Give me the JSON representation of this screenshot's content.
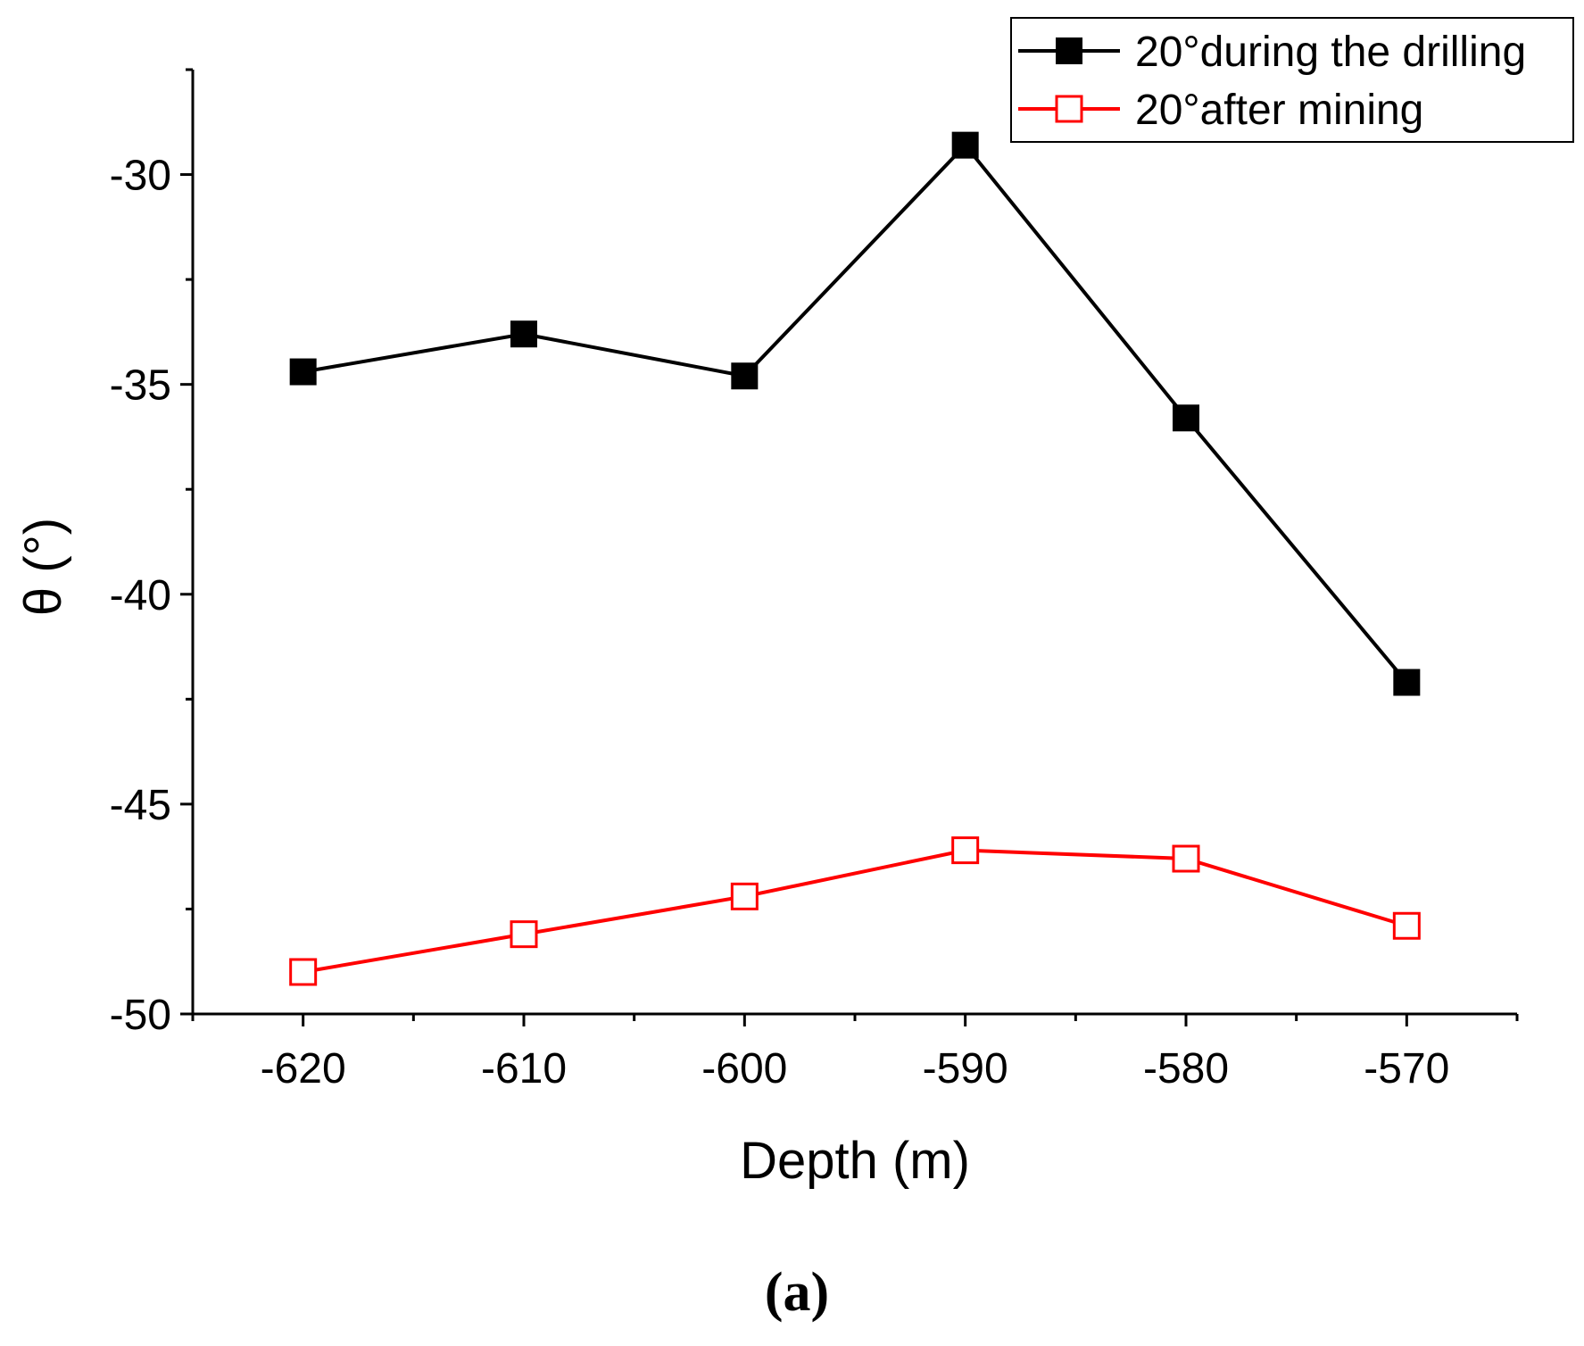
{
  "chart_data": {
    "type": "line",
    "title": "",
    "xlabel": "Depth (m)",
    "ylabel": "θ (°)",
    "x": [
      -620,
      -610,
      -600,
      -590,
      -580,
      -570
    ],
    "xlim": [
      -625,
      -565
    ],
    "ylim": [
      -50,
      -27.5
    ],
    "xticks": [
      -620,
      -610,
      -600,
      -590,
      -580,
      -570
    ],
    "xtick_labels": [
      "-620",
      "-610",
      "-600",
      "-590",
      "-580",
      "-570"
    ],
    "yticks": [
      -50,
      -45,
      -40,
      -35,
      -30
    ],
    "ytick_labels": [
      "-50",
      "-45",
      "-40",
      "-35",
      "-30"
    ],
    "grid": false,
    "legend_position": "top-right",
    "series": [
      {
        "name": "20°during the drilling",
        "color": "#000000",
        "marker": "filled-square",
        "values": [
          -34.7,
          -33.8,
          -34.8,
          -29.3,
          -35.8,
          -42.1
        ]
      },
      {
        "name": "20°after mining",
        "color": "#ff0000",
        "marker": "open-square",
        "values": [
          -49.0,
          -48.1,
          -47.2,
          -46.1,
          -46.3,
          -47.9
        ]
      }
    ]
  },
  "caption": "(a)"
}
